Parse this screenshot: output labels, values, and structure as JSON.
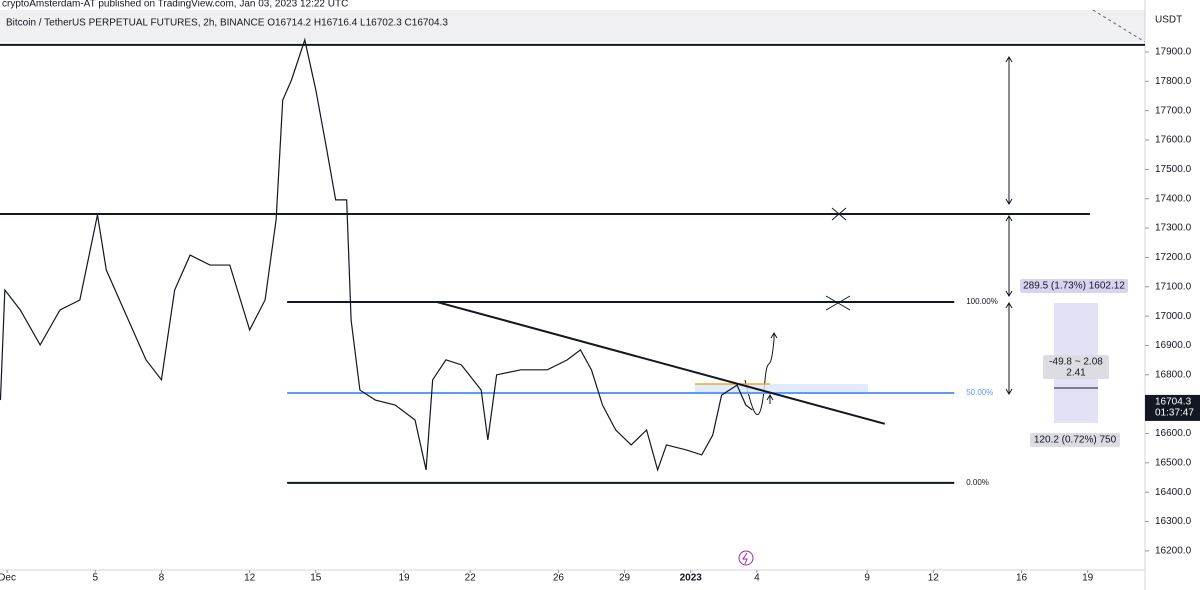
{
  "header": {
    "byline": "cryptoAmsterdam-AT published on TradingView.com, Jan 03, 2023 12:22 UTC",
    "symbol": "Bitcoin / TetherUS PERPETUAL FUTURES, 2h, BINANCE  O16714.2 H16716.4 L16702.3 C16704.3"
  },
  "chart_data": {
    "type": "line",
    "currency": "USDT",
    "x": [
      -0.3,
      -0.1,
      0.6,
      1.5,
      2.4,
      3.3,
      4.1,
      4.5,
      5.4,
      6.3,
      7.0,
      7.6,
      8.3,
      9.2,
      10.1,
      11.0,
      11.7,
      12.2,
      12.5,
      12.9,
      13.5,
      14.0,
      14.5,
      14.9,
      15.4,
      15.6,
      16.0,
      16.7,
      17.6,
      18.5,
      19.0,
      19.3,
      19.9,
      20.6,
      21.5,
      21.8,
      22.2,
      23.3,
      24.5,
      25.4,
      26.0,
      26.5,
      27.0,
      27.6,
      28.3,
      29.0,
      29.5,
      29.9,
      30.8,
      31.5,
      32.0,
      32.4,
      33.1,
      33.5,
      33.8
    ],
    "series": [
      {
        "color": "#131722",
        "values": [
          16714,
          17089,
          17021,
          16902,
          17021,
          17055,
          17345,
          17157,
          17004,
          16851,
          16783,
          17089,
          17208,
          17174,
          17174,
          16953,
          17055,
          17328,
          17736,
          17805,
          17941,
          17771,
          17566,
          17396,
          17396,
          16987,
          16748,
          16714,
          16697,
          16646,
          16476,
          16783,
          16851,
          16834,
          16748,
          16578,
          16800,
          16817,
          16817,
          16851,
          16885,
          16817,
          16697,
          16612,
          16561,
          16612,
          16476,
          16561,
          16544,
          16527,
          16595,
          16731,
          16765,
          16697,
          16680
        ]
      }
    ],
    "xlim": [
      -0.32,
      51.6
    ],
    "ylim": [
      16135,
      18043
    ],
    "xticks": [
      {
        "value": 0,
        "label": "Dec"
      },
      {
        "value": 4,
        "label": "5"
      },
      {
        "value": 7,
        "label": "8"
      },
      {
        "value": 11,
        "label": "12"
      },
      {
        "value": 14,
        "label": "15"
      },
      {
        "value": 18,
        "label": "19"
      },
      {
        "value": 21,
        "label": "22"
      },
      {
        "value": 25,
        "label": "26"
      },
      {
        "value": 28,
        "label": "29"
      },
      {
        "value": 31,
        "label": "2023"
      },
      {
        "value": 34,
        "label": "4"
      },
      {
        "value": 39,
        "label": "9"
      },
      {
        "value": 42,
        "label": "12"
      },
      {
        "value": 46,
        "label": "16"
      },
      {
        "value": 49,
        "label": "19"
      }
    ],
    "yticks": [
      {
        "value": 16200,
        "label": "16200.0"
      },
      {
        "value": 16300,
        "label": "16300.0"
      },
      {
        "value": 16400,
        "label": "16400.0"
      },
      {
        "value": 16500,
        "label": "16500.0"
      },
      {
        "value": 16600,
        "label": "16600.0"
      },
      {
        "value": 16700,
        "label": "16700.0"
      },
      {
        "value": 16800,
        "label": "16800.0"
      },
      {
        "value": 16900,
        "label": "16900.0"
      },
      {
        "value": 17000,
        "label": "17000.0"
      },
      {
        "value": 17100,
        "label": "17100.0"
      },
      {
        "value": 17200,
        "label": "17200.0"
      },
      {
        "value": 17300,
        "label": "17300.0"
      },
      {
        "value": 17400,
        "label": "17400.0"
      },
      {
        "value": 17500,
        "label": "17500.0"
      },
      {
        "value": 17600,
        "label": "17600.0"
      },
      {
        "value": 17700,
        "label": "17700.0"
      },
      {
        "value": 17800,
        "label": "17800.0"
      },
      {
        "value": 17900,
        "label": "17900.0"
      }
    ],
    "hlines": [
      {
        "value": 17924,
        "x": [
          -0.32,
          51.6
        ]
      },
      {
        "value": 17348,
        "x": [
          -0.32,
          49.1
        ]
      }
    ],
    "fib": {
      "x": [
        12.7,
        42.95
      ],
      "levels": [
        {
          "value": 17048,
          "label": "100.00%",
          "color": "#131722"
        },
        {
          "value": 16738,
          "label": "50.00%",
          "color": "#5b9cf6"
        },
        {
          "value": 16432,
          "label": "0.00%",
          "color": "#131722"
        }
      ]
    },
    "trendline": {
      "x": [
        19.5,
        39.8
      ],
      "y": [
        17048,
        16633
      ]
    },
    "last_price": 16704.3,
    "countdown": "01:37:47",
    "measures": {
      "upper": "289.5 (1.73%) 1602.12",
      "mid_range": "-49.8 ~ 2.08",
      "mid_value": "2.41",
      "lower": "120.2 (0.72%) 750"
    }
  }
}
